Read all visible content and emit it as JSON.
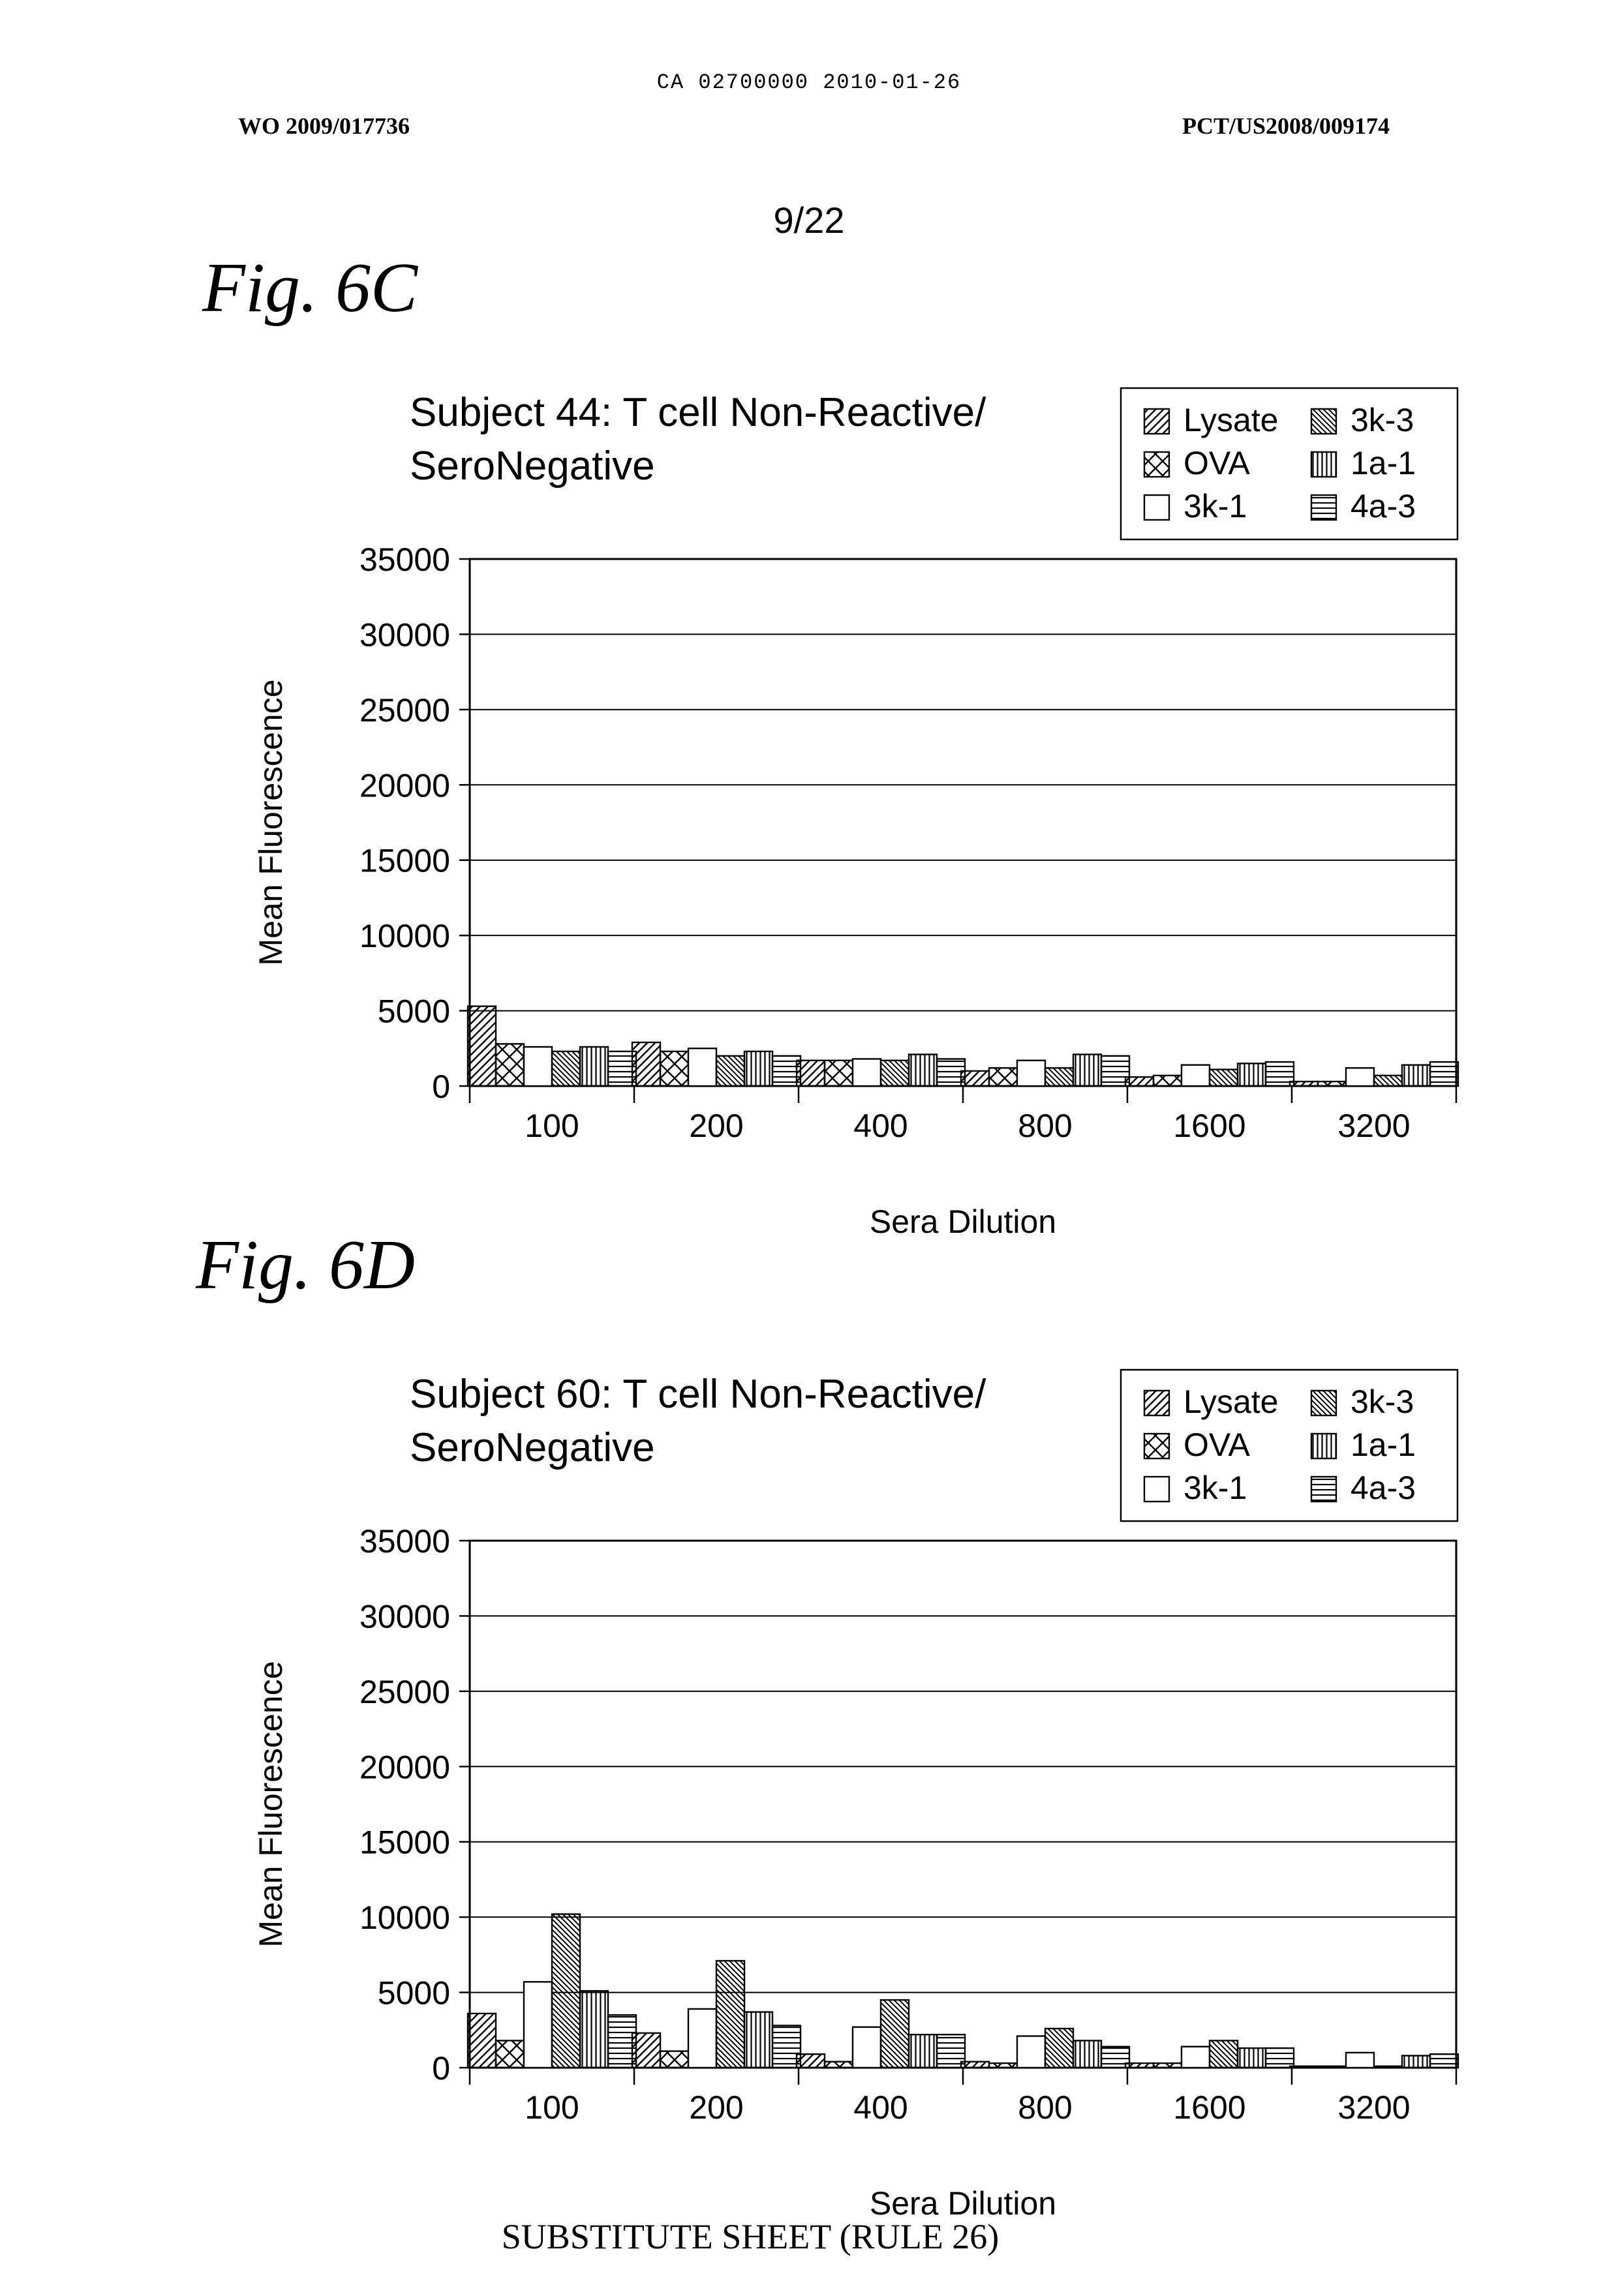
{
  "header": {
    "ca_number": "CA 02700000 2010-01-26",
    "wo_number": "WO 2009/017736",
    "pct_number": "PCT/US2008/009174",
    "page_number": "9/22"
  },
  "figures": [
    {
      "label": "Fig. 6C"
    },
    {
      "label": "Fig. 6D"
    }
  ],
  "footer": "SUBSTITUTE SHEET (RULE 26)",
  "chart_data": [
    {
      "type": "bar",
      "title": "Subject 44: T cell Non-Reactive/ SeroNegative",
      "title_lines": [
        "Subject 44: T cell Non-Reactive/",
        "SeroNegative"
      ],
      "xlabel": "Sera Dilution",
      "ylabel": "Mean Fluorescence",
      "ylim": [
        0,
        35000
      ],
      "yticks": [
        "0",
        "5000",
        "10000",
        "15000",
        "20000",
        "25000",
        "30000",
        "35000"
      ],
      "grid": true,
      "legend": "top-right",
      "categories": [
        "100",
        "200",
        "400",
        "800",
        "1600",
        "3200"
      ],
      "series": [
        {
          "name": "Lysate",
          "pattern": "diag-up",
          "values": [
            5300,
            2900,
            1700,
            1000,
            600,
            300
          ]
        },
        {
          "name": "OVA",
          "pattern": "cross",
          "values": [
            2800,
            2300,
            1700,
            1200,
            700,
            300
          ]
        },
        {
          "name": "3k-1",
          "pattern": "blank",
          "values": [
            2600,
            2500,
            1800,
            1700,
            1400,
            1200
          ]
        },
        {
          "name": "3k-3",
          "pattern": "diag-down",
          "values": [
            2300,
            2000,
            1700,
            1200,
            1100,
            700
          ]
        },
        {
          "name": "1a-1",
          "pattern": "vlines",
          "values": [
            2600,
            2300,
            2100,
            2100,
            1500,
            1400
          ]
        },
        {
          "name": "4a-3",
          "pattern": "hlines",
          "values": [
            2300,
            2000,
            1800,
            2000,
            1600,
            1600
          ]
        }
      ]
    },
    {
      "type": "bar",
      "title": "Subject 60: T cell Non-Reactive/ SeroNegative",
      "title_lines": [
        "Subject 60: T cell Non-Reactive/",
        "SeroNegative"
      ],
      "xlabel": "Sera Dilution",
      "ylabel": "Mean Fluorescence",
      "ylim": [
        0,
        35000
      ],
      "yticks": [
        "0",
        "5000",
        "10000",
        "15000",
        "20000",
        "25000",
        "30000",
        "35000"
      ],
      "grid": true,
      "legend": "top-right",
      "categories": [
        "100",
        "200",
        "400",
        "800",
        "1600",
        "3200"
      ],
      "series": [
        {
          "name": "Lysate",
          "pattern": "diag-up",
          "values": [
            3600,
            2300,
            900,
            400,
            300,
            100
          ]
        },
        {
          "name": "OVA",
          "pattern": "cross",
          "values": [
            1800,
            1100,
            400,
            300,
            300,
            100
          ]
        },
        {
          "name": "3k-1",
          "pattern": "blank",
          "values": [
            5700,
            3900,
            2700,
            2100,
            1400,
            1000
          ]
        },
        {
          "name": "3k-3",
          "pattern": "diag-down",
          "values": [
            10200,
            7100,
            4500,
            2600,
            1800,
            100
          ]
        },
        {
          "name": "1a-1",
          "pattern": "vlines",
          "values": [
            5100,
            3700,
            2200,
            1800,
            1300,
            800
          ]
        },
        {
          "name": "4a-3",
          "pattern": "hlines",
          "values": [
            3500,
            2800,
            2200,
            1400,
            1300,
            900
          ]
        }
      ]
    }
  ]
}
